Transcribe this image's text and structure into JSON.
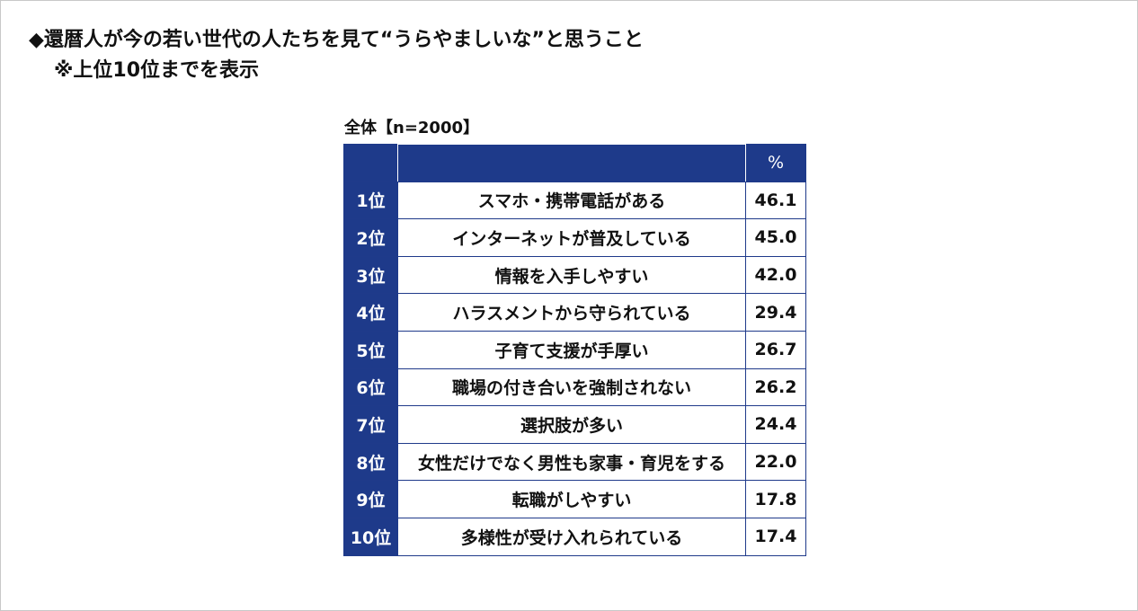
{
  "heading": {
    "line1": "◆還暦人が今の若い世代の人たちを見て“うらやましいな”と思うこと",
    "line2": "※上位10位までを表示"
  },
  "table": {
    "caption": "全体【n=2000】",
    "header_label": "",
    "header_unit": "%",
    "rows": [
      {
        "rank": "1位",
        "label": "スマホ・携帯電話がある",
        "value": "46.1"
      },
      {
        "rank": "2位",
        "label": "インターネットが普及している",
        "value": "45.0"
      },
      {
        "rank": "3位",
        "label": "情報を入手しやすい",
        "value": "42.0"
      },
      {
        "rank": "4位",
        "label": "ハラスメントから守られている",
        "value": "29.4"
      },
      {
        "rank": "5位",
        "label": "子育て支援が手厚い",
        "value": "26.7"
      },
      {
        "rank": "6位",
        "label": "職場の付き合いを強制されない",
        "value": "26.2"
      },
      {
        "rank": "7位",
        "label": "選択肢が多い",
        "value": "24.4"
      },
      {
        "rank": "8位",
        "label": "女性だけでなく男性も家事・育児をする",
        "value": "22.0"
      },
      {
        "rank": "9位",
        "label": "転職がしやすい",
        "value": "17.8"
      },
      {
        "rank": "10位",
        "label": "多様性が受け入れられている",
        "value": "17.4"
      }
    ]
  },
  "colors": {
    "header_bg": "#1e3a8a",
    "header_text": "#ffffff",
    "border": "#1f3a8a"
  }
}
